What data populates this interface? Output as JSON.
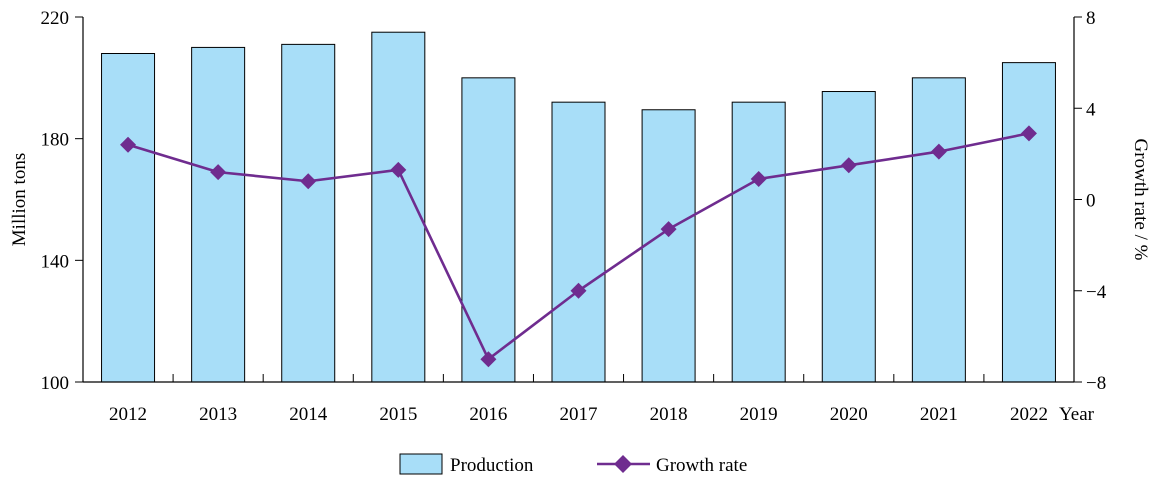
{
  "chart_data": {
    "type": "bar",
    "categories": [
      "2012",
      "2013",
      "2014",
      "2015",
      "2016",
      "2017",
      "2018",
      "2019",
      "2020",
      "2021",
      "2022"
    ],
    "x_unit": "Year",
    "series": [
      {
        "name": "Production",
        "type": "bar",
        "axis": "left",
        "values": [
          208,
          210,
          211,
          215,
          200,
          192,
          189.5,
          192,
          195.5,
          200,
          205
        ],
        "color": "#a8def8"
      },
      {
        "name": "Growth rate",
        "type": "line",
        "axis": "right",
        "values": [
          2.4,
          1.2,
          0.8,
          1.3,
          -7.0,
          -4.0,
          -1.3,
          0.9,
          1.5,
          2.1,
          2.9
        ],
        "color": "#6f2c8f"
      }
    ],
    "ylabel": "Million tons",
    "ylim": [
      100,
      220
    ],
    "yticks": [
      100,
      140,
      180,
      220
    ],
    "y2label": "Growth rate / %",
    "y2lim": [
      -8,
      8
    ],
    "y2ticks": [
      -8,
      -4,
      0,
      4,
      8
    ],
    "y2tick_labels": [
      "−8",
      "−4",
      "0",
      "4",
      "8"
    ],
    "legend": {
      "placement": "bottom",
      "entries": [
        "Production",
        "Growth rate"
      ]
    },
    "grid": false
  }
}
